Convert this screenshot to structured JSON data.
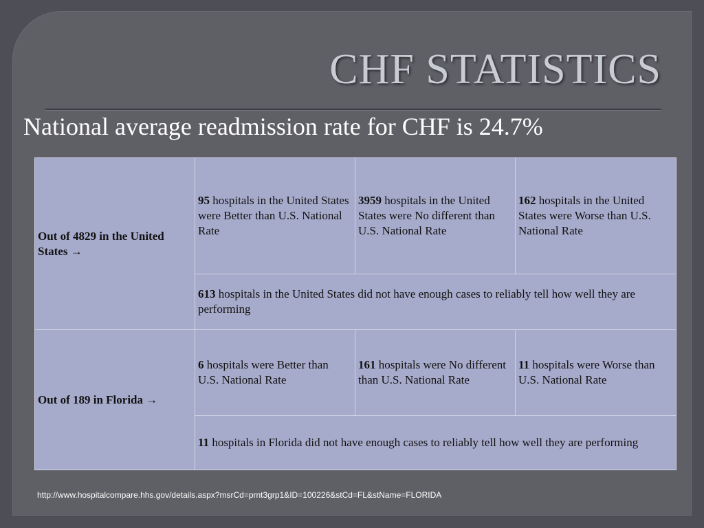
{
  "title": "CHF STATISTICS",
  "subtitle": "National average readmission rate for CHF is 24.7%",
  "table": {
    "us": {
      "label": "Out of 4829 in the United States →",
      "better_count": "95",
      "better_text": "hospitals in the United States were Better than U.S. National Rate",
      "nodiff_count": "3959",
      "nodiff_text": "hospitals in the United States were No different than U.S. National Rate",
      "worse_count": "162",
      "worse_text": "hospitals in the United States were Worse than U.S. National Rate",
      "notenough_count": "613",
      "notenough_text": "hospitals in the United States did not have enough cases to reliably tell how well they are performing"
    },
    "florida": {
      "label": "Out of 189 in Florida →",
      "better_count": "6",
      "better_text": "hospitals were Better than U.S. National Rate",
      "nodiff_count": "161",
      "nodiff_text": "hospitals were No different than U.S. National Rate",
      "worse_count": "11",
      "worse_text": "hospitals were Worse than U.S. National Rate",
      "notenough_count": "11",
      "notenough_text": "hospitals in Florida did not have enough cases to reliably tell how well they are performing"
    }
  },
  "footer_link": "http://www.hospitalcompare.hhs.gov/details.aspx?msrCd=prnt3grp1&ID=100226&stCd=FL&stName=FLORIDA"
}
